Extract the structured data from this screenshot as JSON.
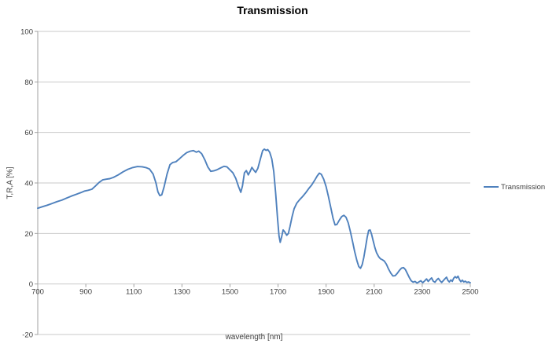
{
  "colors": {
    "series_line": "#4F81BD",
    "gridline": "#c9c9c9",
    "axis": "#a0a0a0",
    "tick_text": "#3f3f3f",
    "title_text": "#000000",
    "background": "#ffffff"
  },
  "chart_data": {
    "type": "line",
    "title": "Transmission",
    "xlabel": "wavelength [nm]",
    "ylabel": "T,R,A [%]",
    "xlim": [
      700,
      2500
    ],
    "ylim": [
      -20,
      100
    ],
    "x_ticks": [
      700,
      900,
      1100,
      1300,
      1500,
      1700,
      1900,
      2100,
      2300,
      2500
    ],
    "y_ticks": [
      -20,
      0,
      20,
      40,
      60,
      80,
      100
    ],
    "grid": "horizontal-only",
    "legend": {
      "position": "right",
      "entries": [
        {
          "label": "Transmission",
          "color": "#4F81BD"
        }
      ]
    },
    "series": [
      {
        "name": "Transmission",
        "color": "#4F81BD",
        "points": [
          [
            700,
            30
          ],
          [
            720,
            30.6
          ],
          [
            740,
            31.2
          ],
          [
            760,
            31.9
          ],
          [
            780,
            32.6
          ],
          [
            800,
            33.2
          ],
          [
            820,
            34
          ],
          [
            840,
            34.8
          ],
          [
            860,
            35.5
          ],
          [
            880,
            36.2
          ],
          [
            895,
            36.8
          ],
          [
            910,
            37.1
          ],
          [
            925,
            37.5
          ],
          [
            940,
            38.8
          ],
          [
            955,
            40.2
          ],
          [
            970,
            41.2
          ],
          [
            985,
            41.5
          ],
          [
            1000,
            41.7
          ],
          [
            1015,
            42.2
          ],
          [
            1035,
            43.2
          ],
          [
            1055,
            44.4
          ],
          [
            1075,
            45.4
          ],
          [
            1095,
            46.1
          ],
          [
            1115,
            46.5
          ],
          [
            1135,
            46.4
          ],
          [
            1150,
            46.1
          ],
          [
            1165,
            45.5
          ],
          [
            1180,
            43.5
          ],
          [
            1192,
            40
          ],
          [
            1200,
            36.5
          ],
          [
            1208,
            35
          ],
          [
            1216,
            35.3
          ],
          [
            1226,
            38.5
          ],
          [
            1238,
            43.5
          ],
          [
            1250,
            47.2
          ],
          [
            1262,
            48.1
          ],
          [
            1275,
            48.4
          ],
          [
            1290,
            49.6
          ],
          [
            1305,
            50.9
          ],
          [
            1320,
            52
          ],
          [
            1335,
            52.6
          ],
          [
            1348,
            52.8
          ],
          [
            1360,
            52.2
          ],
          [
            1370,
            52.6
          ],
          [
            1382,
            51.6
          ],
          [
            1395,
            49.2
          ],
          [
            1408,
            46.3
          ],
          [
            1420,
            44.6
          ],
          [
            1432,
            44.8
          ],
          [
            1445,
            45.2
          ],
          [
            1460,
            45.9
          ],
          [
            1475,
            46.6
          ],
          [
            1487,
            46.4
          ],
          [
            1500,
            45.2
          ],
          [
            1512,
            44
          ],
          [
            1524,
            41.8
          ],
          [
            1536,
            38.5
          ],
          [
            1545,
            36.3
          ],
          [
            1552,
            38.8
          ],
          [
            1560,
            44
          ],
          [
            1568,
            44.9
          ],
          [
            1576,
            43.2
          ],
          [
            1584,
            44.6
          ],
          [
            1591,
            46.2
          ],
          [
            1599,
            45.1
          ],
          [
            1607,
            44.2
          ],
          [
            1616,
            45.8
          ],
          [
            1626,
            49.3
          ],
          [
            1636,
            52.8
          ],
          [
            1643,
            53.4
          ],
          [
            1650,
            52.9
          ],
          [
            1657,
            53.2
          ],
          [
            1665,
            52.2
          ],
          [
            1674,
            49.5
          ],
          [
            1682,
            44.5
          ],
          [
            1690,
            36
          ],
          [
            1698,
            26
          ],
          [
            1704,
            19
          ],
          [
            1709,
            16.5
          ],
          [
            1715,
            18.6
          ],
          [
            1721,
            21.4
          ],
          [
            1728,
            20.6
          ],
          [
            1736,
            19.3
          ],
          [
            1743,
            20
          ],
          [
            1750,
            22.8
          ],
          [
            1758,
            26.5
          ],
          [
            1767,
            29.8
          ],
          [
            1778,
            32
          ],
          [
            1790,
            33.4
          ],
          [
            1802,
            34.6
          ],
          [
            1814,
            36
          ],
          [
            1827,
            37.7
          ],
          [
            1840,
            39.2
          ],
          [
            1852,
            41
          ],
          [
            1863,
            42.8
          ],
          [
            1872,
            43.9
          ],
          [
            1880,
            43.4
          ],
          [
            1890,
            41.5
          ],
          [
            1900,
            38.5
          ],
          [
            1910,
            34.5
          ],
          [
            1920,
            30
          ],
          [
            1929,
            26
          ],
          [
            1937,
            23.4
          ],
          [
            1945,
            23.6
          ],
          [
            1955,
            25.3
          ],
          [
            1965,
            26.7
          ],
          [
            1974,
            27.2
          ],
          [
            1983,
            26.4
          ],
          [
            1992,
            24.2
          ],
          [
            2001,
            20.8
          ],
          [
            2010,
            16.8
          ],
          [
            2019,
            12.8
          ],
          [
            2028,
            9.3
          ],
          [
            2036,
            6.9
          ],
          [
            2043,
            6.2
          ],
          [
            2050,
            7.6
          ],
          [
            2057,
            10.5
          ],
          [
            2064,
            14.5
          ],
          [
            2071,
            18.5
          ],
          [
            2077,
            21.2
          ],
          [
            2083,
            21.4
          ],
          [
            2089,
            19.8
          ],
          [
            2096,
            17
          ],
          [
            2103,
            14.4
          ],
          [
            2110,
            12.4
          ],
          [
            2118,
            10.9
          ],
          [
            2126,
            10
          ],
          [
            2134,
            9.6
          ],
          [
            2142,
            9.1
          ],
          [
            2151,
            7.8
          ],
          [
            2160,
            5.9
          ],
          [
            2169,
            4.3
          ],
          [
            2178,
            3.2
          ],
          [
            2187,
            3.3
          ],
          [
            2196,
            4.2
          ],
          [
            2205,
            5.4
          ],
          [
            2214,
            6.3
          ],
          [
            2222,
            6.5
          ],
          [
            2230,
            5.7
          ],
          [
            2238,
            4.2
          ],
          [
            2246,
            2.6
          ],
          [
            2254,
            1.3
          ],
          [
            2262,
            0.7
          ],
          [
            2270,
            1
          ],
          [
            2278,
            0.4
          ],
          [
            2286,
            0.8
          ],
          [
            2294,
            1.3
          ],
          [
            2302,
            0.5
          ],
          [
            2310,
            1.2
          ],
          [
            2318,
            2
          ],
          [
            2325,
            1
          ],
          [
            2332,
            1.8
          ],
          [
            2339,
            2.4
          ],
          [
            2346,
            1.1
          ],
          [
            2353,
            0.7
          ],
          [
            2360,
            1.6
          ],
          [
            2367,
            2.2
          ],
          [
            2374,
            1.3
          ],
          [
            2381,
            0.6
          ],
          [
            2388,
            1.4
          ],
          [
            2395,
            2.1
          ],
          [
            2401,
            2.7
          ],
          [
            2407,
            1.4
          ],
          [
            2413,
            0.8
          ],
          [
            2419,
            1.6
          ],
          [
            2425,
            1
          ],
          [
            2431,
            2.3
          ],
          [
            2437,
            2.9
          ],
          [
            2443,
            2.4
          ],
          [
            2449,
            3.1
          ],
          [
            2455,
            1.7
          ],
          [
            2461,
            0.9
          ],
          [
            2467,
            1.5
          ],
          [
            2473,
            0.8
          ],
          [
            2479,
            1.1
          ],
          [
            2486,
            0.6
          ],
          [
            2493,
            0.8
          ],
          [
            2500,
            0.5
          ]
        ]
      }
    ]
  }
}
